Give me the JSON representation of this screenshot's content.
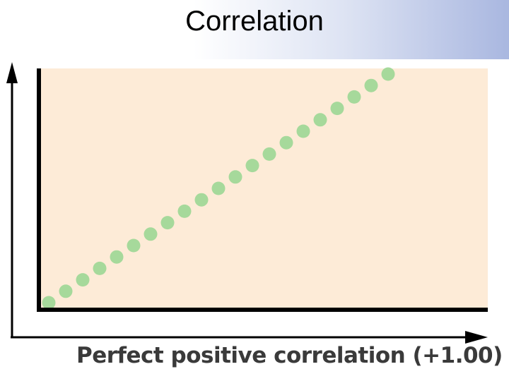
{
  "slide": {
    "title": "Correlation"
  },
  "chart_data": {
    "type": "scatter",
    "title": "",
    "xlabel": "Perfect positive correlation (+1.00)",
    "ylabel": "",
    "grid": false,
    "legend": "none",
    "series": [
      {
        "x": [
          1,
          2,
          3,
          4,
          5,
          6,
          7,
          8,
          9,
          10,
          11,
          12,
          13,
          14,
          15,
          16,
          17,
          18,
          19,
          20,
          21
        ],
        "y": [
          1,
          2,
          3,
          4,
          5,
          6,
          7,
          8,
          9,
          10,
          11,
          12,
          13,
          14,
          15,
          16,
          17,
          18,
          19,
          20,
          21
        ]
      }
    ],
    "xlim": [
      1,
      21
    ],
    "ylim": [
      1,
      21
    ],
    "colors": {
      "point": "#a6d99b",
      "plot_background": "#fdebd7",
      "axis": "#000000"
    }
  }
}
